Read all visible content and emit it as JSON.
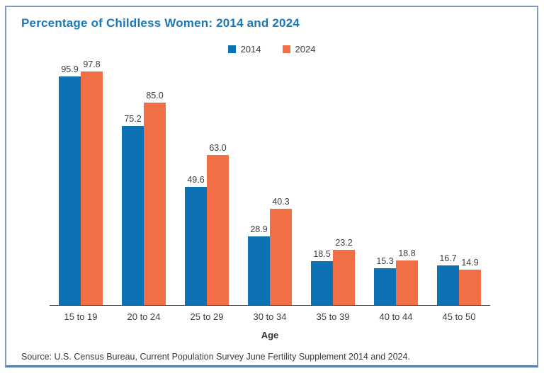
{
  "source": "Source: U.S. Census Bureau, Current Population Survey June Fertility Supplement 2014 and 2024.",
  "colors": {
    "title_blue": "#1878bc",
    "series_2014": "#0c72b4",
    "series_2024": "#f26e45",
    "frame_border": "#7b9cc4",
    "axis": "#444444",
    "label_text": "#3d3d3d"
  },
  "chart_data": {
    "type": "bar",
    "title": "Percentage of Childless Women: 2014 and 2024",
    "categories": [
      "15 to 19",
      "20 to 24",
      "25 to 29",
      "30 to 34",
      "35 to 39",
      "40 to 44",
      "45 to 50"
    ],
    "series": [
      {
        "name": "2014",
        "color": "#0c72b4",
        "values": [
          95.9,
          75.2,
          49.6,
          28.9,
          18.5,
          15.3,
          16.7
        ]
      },
      {
        "name": "2024",
        "color": "#f26e45",
        "values": [
          97.8,
          85.0,
          63.0,
          40.3,
          23.2,
          18.8,
          14.9
        ]
      }
    ],
    "xlabel": "Age",
    "ylabel": "",
    "ylim": [
      0,
      100
    ],
    "grid": false,
    "legend_position": "top-center",
    "value_labels": true,
    "value_label_format": "one-decimal"
  }
}
